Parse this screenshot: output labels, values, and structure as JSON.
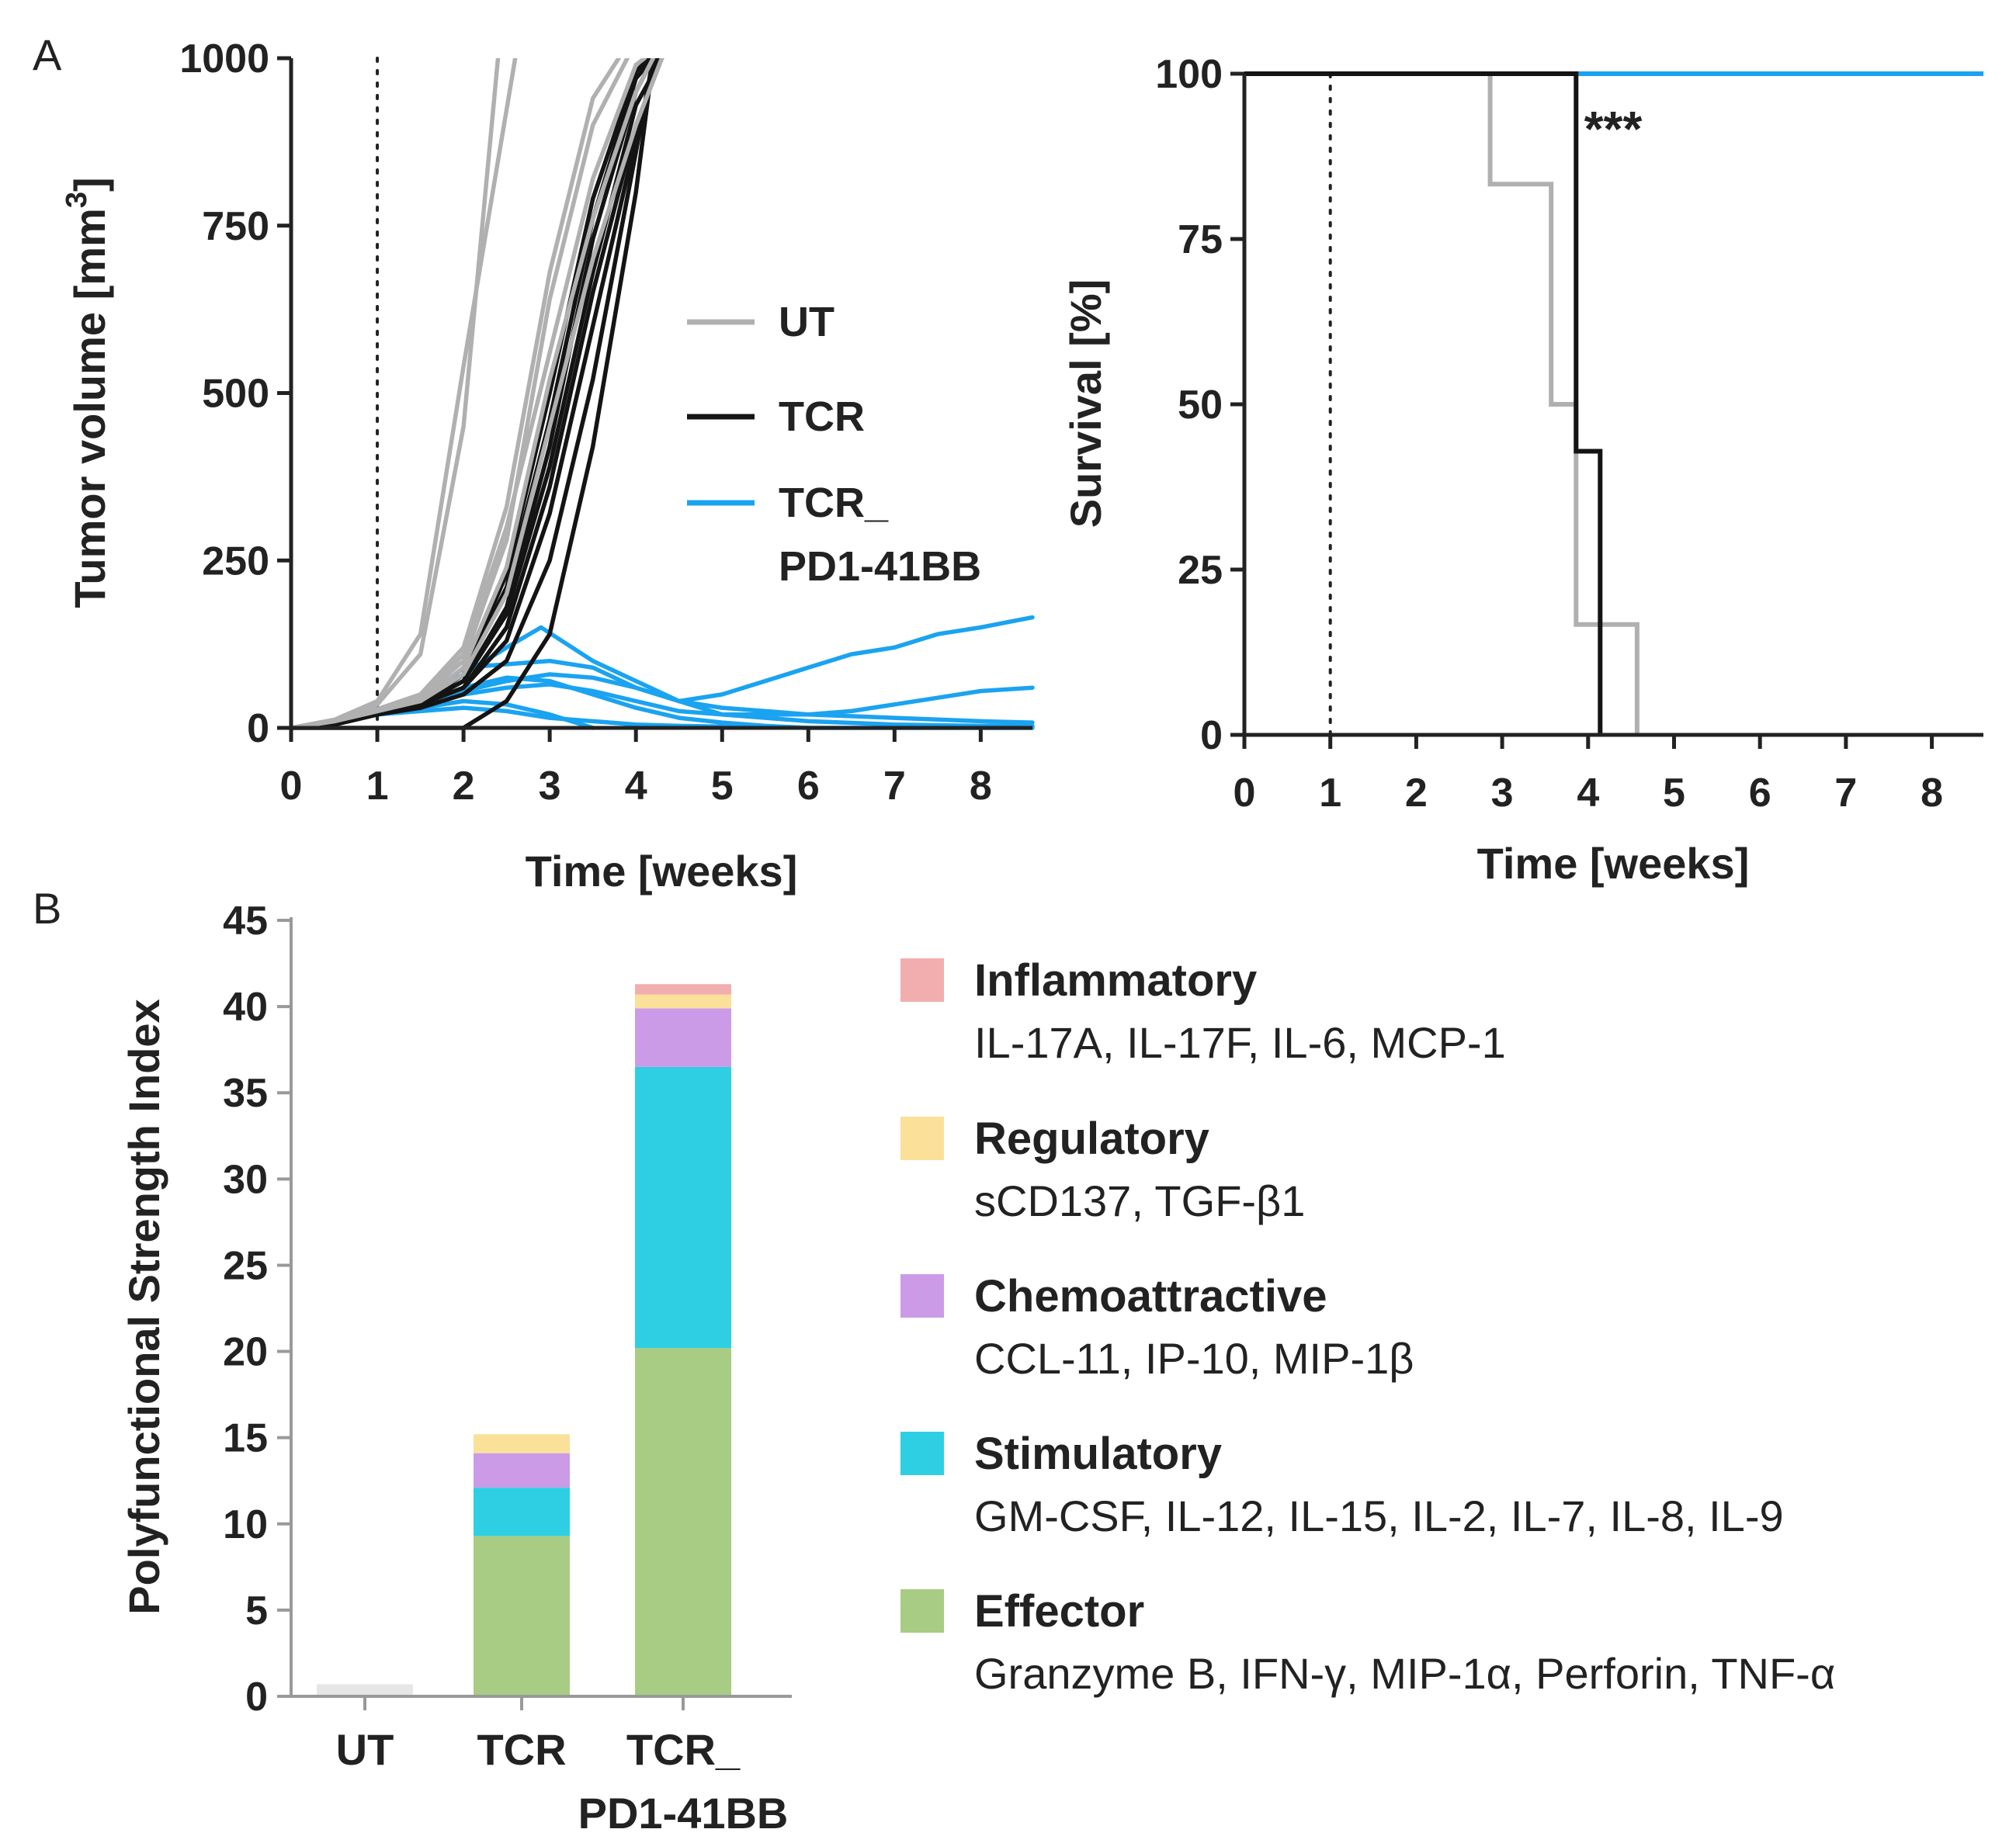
{
  "chart_data": [
    {
      "type": "line",
      "panel": "A",
      "ylabel": "Tumor volume [mm",
      "ylabel_sup": "3",
      "ylabel_end": "]",
      "xlabel": "Time [weeks]",
      "xlim": [
        0,
        8.6
      ],
      "ylim": [
        0,
        1000
      ],
      "xticks": [
        "0",
        "1",
        "2",
        "3",
        "4",
        "5",
        "6",
        "7",
        "8"
      ],
      "yticks": [
        "0",
        "250",
        "500",
        "750",
        "1000"
      ],
      "treatment_week": 1,
      "legend": [
        "UT",
        "TCR",
        "TCR_",
        "PD1-41BB"
      ],
      "colors": {
        "UT": "#b0b0b0",
        "TCR": "#141414",
        "TCR_PD1-41BB": "#1aa3f0"
      },
      "series": [
        {
          "group": "UT",
          "x": [
            0,
            0.5,
            1,
            1.5,
            2,
            2.6
          ],
          "y": [
            0,
            12,
            40,
            140,
            540,
            1000
          ]
        },
        {
          "group": "UT",
          "x": [
            0,
            0.5,
            1,
            1.5,
            2,
            2.4
          ],
          "y": [
            0,
            10,
            35,
            110,
            450,
            1000
          ]
        },
        {
          "group": "UT",
          "x": [
            0,
            0.5,
            1,
            1.5,
            2,
            2.5,
            3,
            3.5,
            3.9
          ],
          "y": [
            0,
            10,
            25,
            45,
            100,
            280,
            640,
            900,
            1000
          ]
        },
        {
          "group": "UT",
          "x": [
            0,
            0.5,
            1,
            1.5,
            2,
            2.5,
            3,
            3.5,
            4,
            4.2
          ],
          "y": [
            0,
            10,
            25,
            40,
            90,
            240,
            520,
            760,
            950,
            1000
          ]
        },
        {
          "group": "UT",
          "x": [
            0,
            0.5,
            1,
            1.5,
            2,
            2.5,
            3,
            3.5,
            4,
            4.3
          ],
          "y": [
            0,
            10,
            25,
            40,
            80,
            200,
            450,
            700,
            900,
            1000
          ]
        },
        {
          "group": "UT",
          "x": [
            0,
            0.5,
            1,
            1.5,
            2,
            2.5,
            3,
            3.5,
            4,
            4.1
          ],
          "y": [
            0,
            10,
            25,
            45,
            110,
            300,
            560,
            820,
            990,
            1000
          ]
        },
        {
          "group": "UT",
          "x": [
            0,
            0.5,
            1,
            1.5,
            2,
            2.5,
            3,
            3.5,
            3.8
          ],
          "y": [
            0,
            12,
            28,
            50,
            120,
            330,
            680,
            940,
            1000
          ]
        },
        {
          "group": "TCR",
          "x": [
            0,
            0.5,
            1,
            1.5,
            2,
            2.5,
            3,
            3.5,
            4,
            4.2
          ],
          "y": [
            0,
            5,
            20,
            35,
            70,
            180,
            420,
            730,
            950,
            1000
          ]
        },
        {
          "group": "TCR",
          "x": [
            0,
            0.5,
            1,
            1.5,
            2,
            2.5,
            3,
            3.5,
            4,
            4.3
          ],
          "y": [
            0,
            5,
            20,
            35,
            60,
            150,
            360,
            650,
            900,
            1000
          ]
        },
        {
          "group": "TCR",
          "x": [
            0,
            0.5,
            1,
            1.5,
            2,
            2.5,
            3,
            3.5,
            4,
            4.2
          ],
          "y": [
            0,
            5,
            20,
            35,
            80,
            210,
            460,
            760,
            970,
            1000
          ]
        },
        {
          "group": "TCR",
          "x": [
            0,
            0.5,
            1,
            1.5,
            2,
            2.5,
            3,
            3.5,
            4,
            4.25
          ],
          "y": [
            0,
            5,
            20,
            35,
            60,
            130,
            320,
            600,
            880,
            1000
          ]
        },
        {
          "group": "TCR",
          "x": [
            0,
            0.5,
            1,
            1.5,
            2,
            2.5,
            3,
            3.5,
            4,
            4.2
          ],
          "y": [
            0,
            5,
            20,
            30,
            50,
            100,
            250,
            520,
            860,
            1000
          ]
        },
        {
          "group": "TCR",
          "x": [
            0,
            0.5,
            1,
            1.5,
            2,
            2.5,
            3,
            3.5,
            4,
            4.15
          ],
          "y": [
            0,
            5,
            20,
            35,
            80,
            230,
            500,
            790,
            980,
            1000
          ]
        },
        {
          "group": "TCR",
          "x": [
            0,
            0.5,
            1,
            1.5,
            2,
            2.5,
            3,
            3.5,
            4,
            4.3
          ],
          "y": [
            0,
            5,
            20,
            35,
            70,
            170,
            390,
            680,
            930,
            1000
          ]
        },
        {
          "group": "TCR",
          "x": [
            0,
            0.5,
            1,
            2,
            2.5,
            3,
            3.5,
            4,
            4.2
          ],
          "y": [
            0,
            0,
            0,
            0,
            40,
            140,
            420,
            800,
            1000
          ]
        },
        {
          "group": "TCR_PD1-41BB",
          "x": [
            0,
            0.5,
            1,
            1.5,
            2,
            2.5,
            3,
            3.5,
            4,
            4.5,
            5,
            5.5,
            6,
            6.5,
            7,
            7.5,
            8,
            8.6
          ],
          "y": [
            0,
            10,
            25,
            35,
            55,
            70,
            80,
            75,
            60,
            40,
            50,
            70,
            90,
            110,
            120,
            140,
            150,
            165
          ]
        },
        {
          "group": "TCR_PD1-41BB",
          "x": [
            0,
            0.5,
            1,
            1.5,
            2,
            2.5,
            2.9,
            3.5,
            4,
            4.5,
            5,
            5.5,
            6,
            6.5,
            7,
            7.5,
            8,
            8.6
          ],
          "y": [
            0,
            10,
            25,
            35,
            80,
            120,
            150,
            100,
            70,
            40,
            30,
            25,
            20,
            25,
            35,
            45,
            55,
            60
          ]
        },
        {
          "group": "TCR_PD1-41BB",
          "x": [
            0,
            0.5,
            1,
            1.5,
            2,
            2.5,
            3,
            3.5,
            4,
            4.5,
            5,
            6,
            7,
            8,
            8.6
          ],
          "y": [
            0,
            10,
            25,
            35,
            90,
            95,
            100,
            90,
            60,
            40,
            20,
            10,
            5,
            3,
            3
          ]
        },
        {
          "group": "TCR_PD1-41BB",
          "x": [
            0,
            0.5,
            1,
            1.5,
            2,
            2.5,
            3,
            3.5,
            4,
            4.5,
            5,
            5.5,
            6
          ],
          "y": [
            0,
            10,
            25,
            35,
            60,
            75,
            70,
            50,
            30,
            15,
            8,
            3,
            0
          ]
        },
        {
          "group": "TCR_PD1-41BB",
          "x": [
            0,
            0.5,
            1,
            1.5,
            2,
            2.5,
            3,
            3.5,
            4,
            4.5,
            5,
            6,
            7,
            8,
            8.6
          ],
          "y": [
            0,
            10,
            25,
            35,
            50,
            60,
            65,
            55,
            40,
            25,
            20,
            20,
            15,
            10,
            8
          ]
        },
        {
          "group": "TCR_PD1-41BB",
          "x": [
            0,
            0.5,
            1,
            1.5,
            2,
            2.5,
            3,
            3.5
          ],
          "y": [
            0,
            10,
            25,
            30,
            40,
            35,
            20,
            0
          ]
        },
        {
          "group": "TCR_PD1-41BB",
          "x": [
            0,
            0.5,
            1,
            1.5,
            2,
            2.5,
            3,
            3.5,
            4,
            4.5,
            5,
            5.5,
            6,
            6.5,
            7,
            7.5,
            8,
            8.6
          ],
          "y": [
            0,
            10,
            20,
            25,
            30,
            25,
            15,
            10,
            5,
            3,
            2,
            2,
            0,
            0,
            0,
            0,
            0,
            0
          ]
        }
      ]
    },
    {
      "type": "line",
      "subtype": "kaplan-meier",
      "panel": "A",
      "ylabel": "Survival [%]",
      "xlabel": "Time [weeks]",
      "xlim": [
        0,
        8.6
      ],
      "ylim": [
        0,
        100
      ],
      "xticks": [
        "0",
        "1",
        "2",
        "3",
        "4",
        "5",
        "6",
        "7",
        "8"
      ],
      "yticks": [
        "0",
        "25",
        "50",
        "75",
        "100"
      ],
      "treatment_week": 1,
      "annotation": "***",
      "series": [
        {
          "name": "TCR_PD1-41BB",
          "color": "#1aa3f0",
          "x": [
            0,
            8.6
          ],
          "y": [
            100,
            100
          ]
        },
        {
          "name": "UT",
          "color": "#b0b0b0",
          "x": [
            0,
            2.86,
            2.86,
            3.57,
            3.57,
            3.86,
            3.86,
            4.57,
            4.57
          ],
          "y": [
            100,
            100,
            83.3,
            83.3,
            50,
            50,
            16.7,
            16.7,
            0
          ]
        },
        {
          "name": "TCR",
          "color": "#141414",
          "x": [
            0,
            3.86,
            3.86,
            4.14,
            4.14
          ],
          "y": [
            100,
            100,
            42.9,
            42.9,
            0
          ]
        }
      ]
    },
    {
      "type": "bar",
      "subtype": "stacked",
      "panel": "B",
      "ylabel": "Polyfunctional Strength Index",
      "ylim": [
        0,
        45
      ],
      "yticks": [
        "0",
        "5",
        "10",
        "15",
        "20",
        "25",
        "30",
        "35",
        "40",
        "45"
      ],
      "categories": [
        "UT",
        "TCR",
        "TCR_\nPD1-41BB"
      ],
      "category_lines": [
        [
          "UT"
        ],
        [
          "TCR"
        ],
        [
          "TCR_",
          "PD1-41BB"
        ]
      ],
      "series": [
        {
          "name": "Effector",
          "color": "#a8cc84",
          "values": [
            0.7,
            9.3,
            20.2
          ],
          "desc": "Granzyme B, IFN-γ, MIP-1α, Perforin, TNF-α"
        },
        {
          "name": "Stimulatory",
          "color": "#2ecfe2",
          "values": [
            0,
            2.8,
            16.3
          ],
          "desc": "GM-CSF, IL-12, IL-15, IL-2, IL-7, IL-8, IL-9"
        },
        {
          "name": "Chemoattractive",
          "color": "#cc9be8",
          "values": [
            0,
            2.0,
            3.4
          ],
          "desc": "CCL-11, IP-10, MIP-1β"
        },
        {
          "name": "Regulatory",
          "color": "#fbe09a",
          "values": [
            0,
            1.1,
            0.8
          ],
          "desc": "sCD137, TGF-β1"
        },
        {
          "name": "Inflammatory",
          "color": "#f2aeae",
          "values": [
            0,
            0,
            0.6
          ],
          "desc": "IL-17A, IL-17F, IL-6, MCP-1"
        }
      ],
      "ut_color": "#e6e6e6",
      "legend_order": [
        "Inflammatory",
        "Regulatory",
        "Chemoattractive",
        "Stimulatory",
        "Effector"
      ]
    }
  ],
  "panels": {
    "a": "A",
    "b": "B"
  }
}
